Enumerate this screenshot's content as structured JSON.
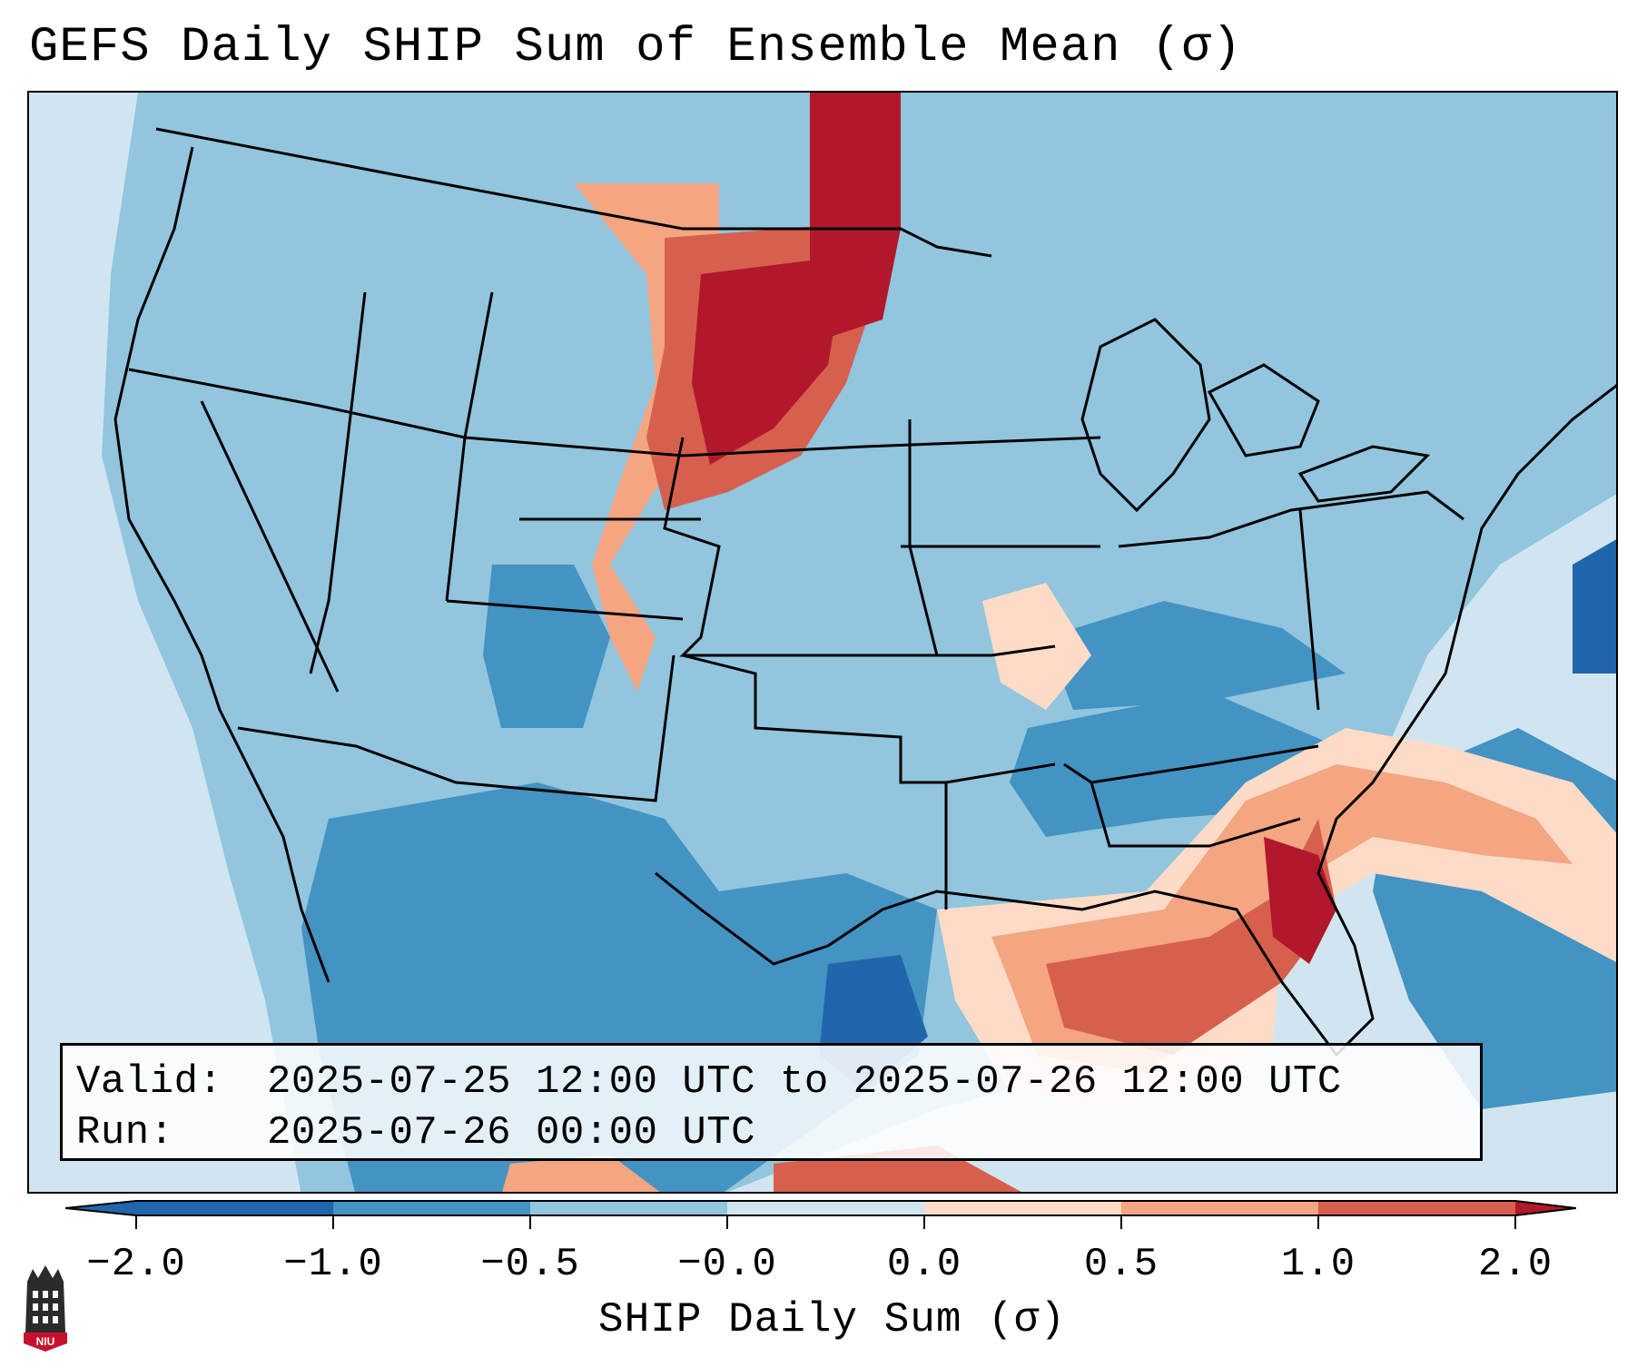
{
  "title": "GEFS Daily SHIP Sum of Ensemble Mean (σ)",
  "info": {
    "valid_label": "Valid:",
    "valid_value": "2025-07-25 12:00 UTC to 2025-07-26 12:00 UTC",
    "run_label": "Run:",
    "run_value": "2025-07-26 00:00 UTC"
  },
  "colorbar": {
    "label": "SHIP Daily Sum (σ)",
    "tick_labels": [
      "−2.0",
      "−1.0",
      "−0.5",
      "−0.0",
      "0.0",
      "0.5",
      "1.0",
      "2.0"
    ],
    "colors": [
      "#2166ac",
      "#4393c3",
      "#92c5de",
      "#d1e5f0",
      "#fddbc7",
      "#f4a582",
      "#d6604d",
      "#b2182b"
    ],
    "extend": "both"
  },
  "logo": {
    "text": "NIU",
    "color": "#c8102e"
  },
  "colors": {
    "border": "#000000",
    "outside_projection": "#ffffff"
  }
}
